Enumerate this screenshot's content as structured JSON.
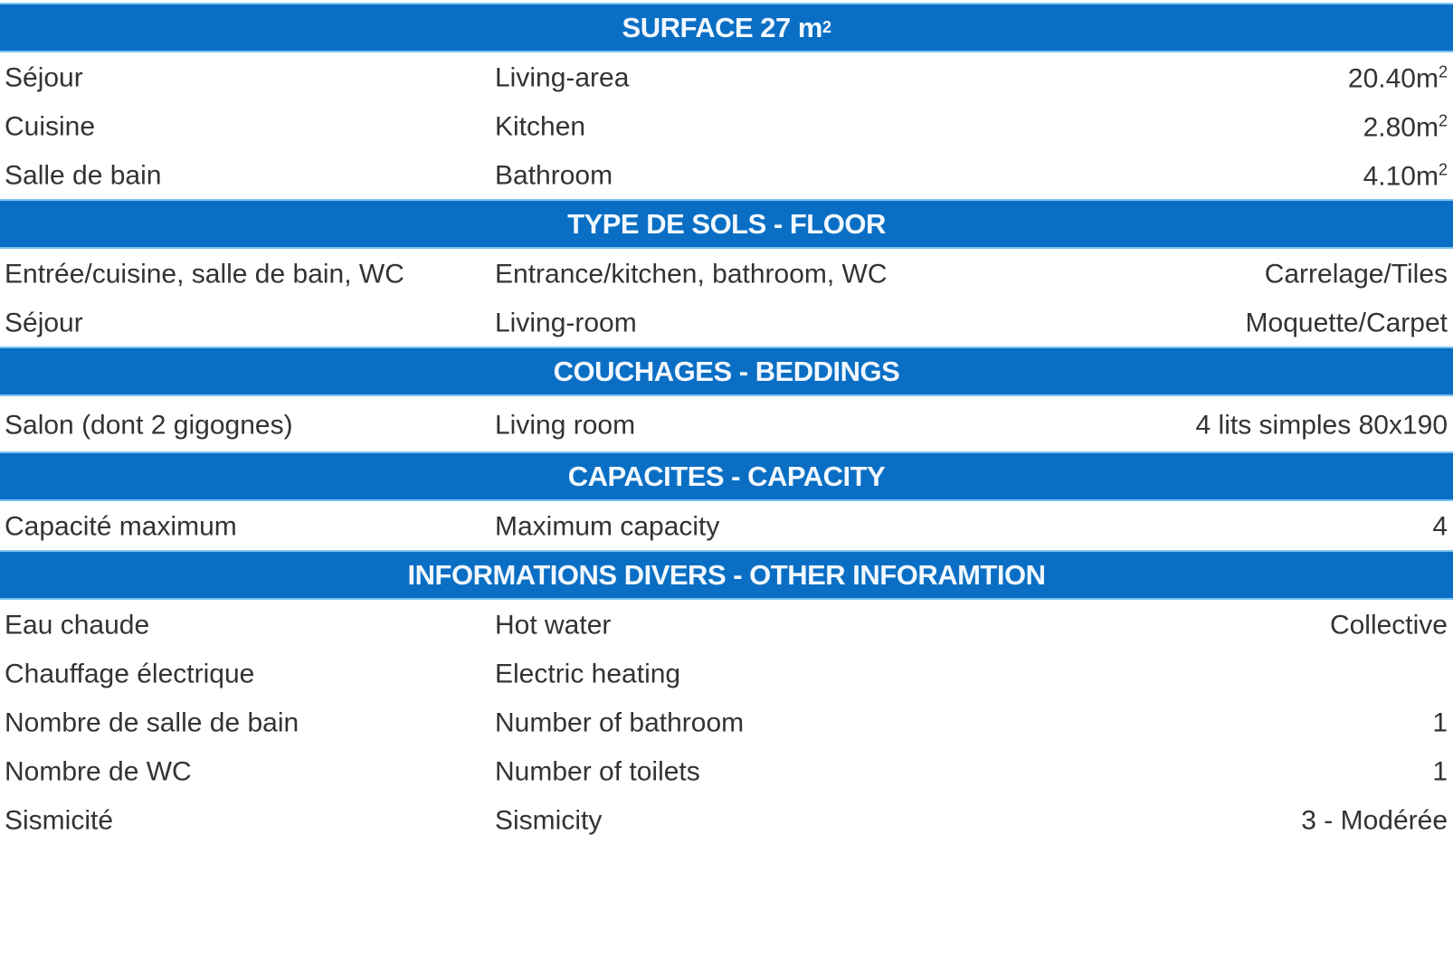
{
  "sections": [
    {
      "title": "SURFACE 27 m",
      "title_sup": "2",
      "rows": [
        {
          "fr": "Séjour",
          "en": "Living-area",
          "value": "20.40m",
          "value_sup": "2"
        },
        {
          "fr": "Cuisine",
          "en": "Kitchen",
          "value": "2.80m",
          "value_sup": "2"
        },
        {
          "fr": "Salle de bain",
          "en": "Bathroom",
          "value": "4.10m",
          "value_sup": "2"
        }
      ]
    },
    {
      "title": "TYPE DE SOLS - FLOOR",
      "rows": [
        {
          "fr": "Entrée/cuisine, salle de bain, WC",
          "en": "Entrance/kitchen, bathroom, WC",
          "value": "Carrelage/Tiles"
        },
        {
          "fr": "Séjour",
          "en": "Living-room",
          "value": "Moquette/Carpet"
        }
      ]
    },
    {
      "title": "COUCHAGES - BEDDINGS",
      "rows": [
        {
          "fr": "Salon (dont 2 gigognes)",
          "en": "Living room",
          "value": "4 lits simples 80x190"
        }
      ]
    },
    {
      "title": "CAPACITES - CAPACITY",
      "rows": [
        {
          "fr": "Capacité maximum",
          "en": "Maximum capacity",
          "value": "4"
        }
      ]
    },
    {
      "title": "INFORMATIONS DIVERS - OTHER INFORAMTION",
      "rows": [
        {
          "fr": "Eau chaude",
          "en": "Hot water",
          "value": "Collective"
        },
        {
          "fr": "Chauffage électrique",
          "en": "Electric heating",
          "value": ""
        },
        {
          "fr": "Nombre de salle de bain",
          "en": "Number of bathroom",
          "value": "1"
        },
        {
          "fr": "Nombre de WC",
          "en": "Number of toilets",
          "value": "1"
        },
        {
          "fr": "Sismicité",
          "en": "Sismicity",
          "value": "3 - Modérée"
        }
      ]
    }
  ],
  "colors": {
    "header_bg": "#0a6fc4",
    "header_text": "#f2f8ff",
    "body_text": "#333333"
  }
}
